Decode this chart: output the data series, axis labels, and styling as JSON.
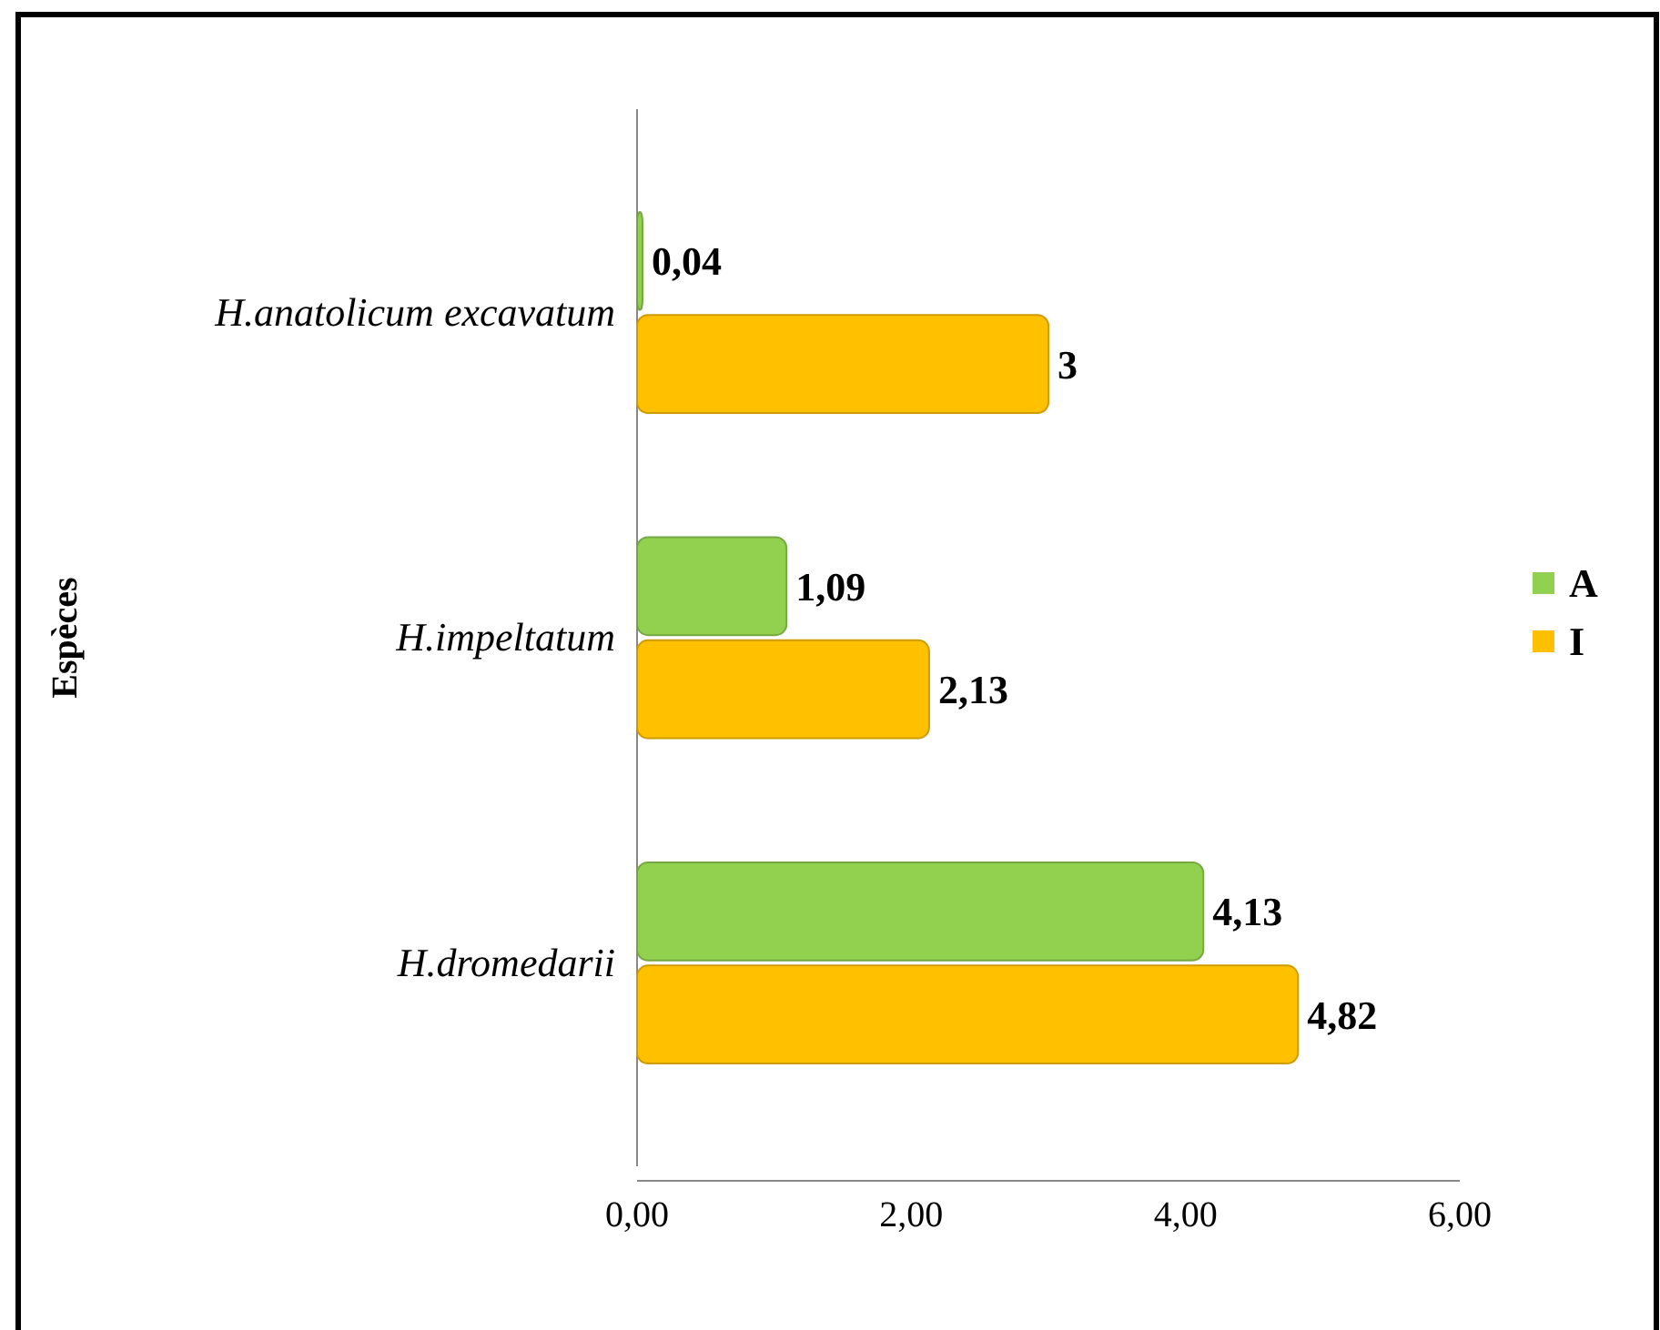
{
  "chart_data": {
    "type": "bar",
    "orientation": "horizontal",
    "ylabel": "Espèces",
    "categories": [
      "H.anatolicum excavatum",
      "H.impeltatum",
      "H.dromedarii"
    ],
    "series": [
      {
        "name": "A",
        "color": "#92d050",
        "values": [
          0.04,
          1.09,
          4.13
        ],
        "value_labels": [
          "0,04",
          "1,09",
          "4,13"
        ]
      },
      {
        "name": "I",
        "color": "#ffc000",
        "values": [
          3,
          2.13,
          4.82
        ],
        "value_labels": [
          "3",
          "2,13",
          "4,82"
        ]
      }
    ],
    "xlim": [
      0,
      6
    ],
    "xticks": [
      {
        "value": 0,
        "label": "0,00"
      },
      {
        "value": 2,
        "label": "2,00"
      },
      {
        "value": 4,
        "label": "4,00"
      },
      {
        "value": 6,
        "label": "6,00"
      }
    ],
    "grid": false,
    "legend": "right"
  }
}
